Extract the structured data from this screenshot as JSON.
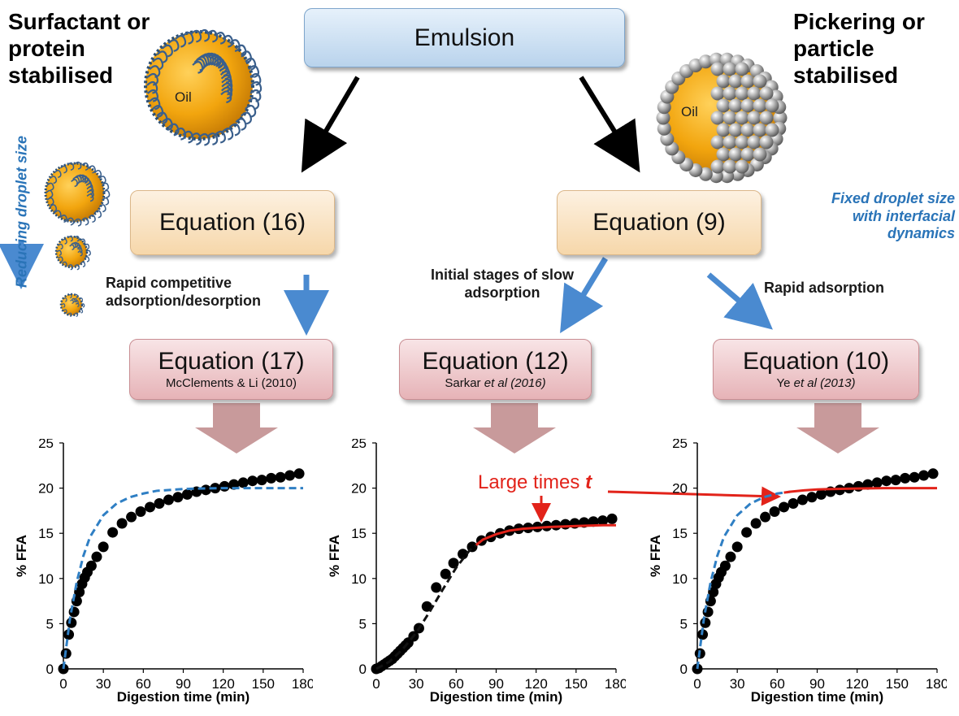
{
  "colors": {
    "fit_blue": "#2f7fc4",
    "fit_red": "#e2231a",
    "fit_black": "#111111",
    "oil": "#f2a50e",
    "arrow_blue": "#4a8ad0",
    "arrow_pink": "#c89a9b"
  },
  "emulsion_label": "Emulsion",
  "left_title": "Surfactant or protein stabilised",
  "right_title": "Pickering or particle stabilised",
  "oil_label": "Oil",
  "reducing_label": "Reducing droplet size",
  "fixed_label": "Fixed droplet size with interfacial dynamics",
  "eq16": "Equation (16)",
  "eq9": "Equation (9)",
  "note_rapid_comp": "Rapid competitive adsorption/desorption",
  "note_initial": "Initial stages of slow adsorption",
  "note_rapid_ads": "Rapid adsorption",
  "eq17": {
    "label": "Equation (17)",
    "ref": "McClements & Li (2010)"
  },
  "eq12": {
    "label": "Equation (12)",
    "ref_pre": "Sarkar ",
    "ref_it": "et al (2016)"
  },
  "eq10": {
    "label": "Equation (10)",
    "ref_pre": "Ye ",
    "ref_it": "et al (2013)"
  },
  "large_times_label": "Large times",
  "large_times_var": "t",
  "chart_data": [
    {
      "type": "scatter",
      "xlabel": "Digestion time (min)",
      "ylabel": "% FFA",
      "xlim": [
        0,
        180
      ],
      "ylim": [
        0,
        25
      ],
      "xticks": [
        0,
        30,
        60,
        90,
        120,
        150,
        180
      ],
      "yticks": [
        0,
        5,
        10,
        15,
        20,
        25
      ],
      "series": [
        {
          "kind": "points",
          "x": [
            0,
            2,
            4,
            6,
            8,
            10,
            12,
            14,
            16,
            18,
            21,
            25,
            30,
            37,
            44,
            51,
            58,
            65,
            72,
            79,
            86,
            93,
            100,
            107,
            114,
            121,
            128,
            135,
            142,
            149,
            156,
            163,
            170,
            177
          ],
          "y": [
            0,
            1.7,
            3.8,
            5.1,
            6.3,
            7.5,
            8.5,
            9.4,
            10.1,
            10.7,
            11.4,
            12.4,
            13.5,
            15.1,
            16.1,
            16.8,
            17.4,
            17.9,
            18.3,
            18.7,
            19.0,
            19.3,
            19.6,
            19.8,
            20.0,
            20.2,
            20.4,
            20.6,
            20.8,
            20.9,
            21.1,
            21.2,
            21.4,
            21.6
          ]
        },
        {
          "kind": "dashed-line",
          "color": "#2f7fc4",
          "x": [
            0,
            5,
            10,
            15,
            20,
            30,
            40,
            50,
            60,
            70,
            80,
            90,
            100,
            120,
            140,
            160,
            180
          ],
          "y": [
            0,
            5.6,
            9.6,
            12.5,
            14.6,
            17.0,
            18.3,
            19.0,
            19.4,
            19.7,
            19.8,
            19.9,
            19.95,
            20.0,
            20.0,
            20.0,
            20.0
          ]
        }
      ]
    },
    {
      "type": "scatter",
      "xlabel": "Digestion time (min)",
      "ylabel": "% FFA",
      "xlim": [
        0,
        180
      ],
      "ylim": [
        0,
        25
      ],
      "xticks": [
        0,
        30,
        60,
        90,
        120,
        150,
        180
      ],
      "yticks": [
        0,
        5,
        10,
        15,
        20,
        25
      ],
      "series": [
        {
          "kind": "points",
          "x": [
            0,
            2,
            4,
            6,
            8,
            10,
            12,
            14,
            16,
            18,
            20,
            22,
            24,
            28,
            32,
            38,
            45,
            52,
            58,
            65,
            72,
            79,
            86,
            93,
            100,
            107,
            114,
            121,
            128,
            135,
            142,
            149,
            156,
            163,
            170,
            177
          ],
          "y": [
            0,
            0.1,
            0.3,
            0.5,
            0.7,
            0.9,
            1.1,
            1.4,
            1.7,
            2.0,
            2.3,
            2.6,
            2.9,
            3.6,
            4.5,
            6.9,
            9.0,
            10.5,
            11.7,
            12.7,
            13.5,
            14.2,
            14.6,
            15.0,
            15.3,
            15.5,
            15.6,
            15.7,
            15.8,
            15.9,
            16.0,
            16.1,
            16.2,
            16.3,
            16.4,
            16.6
          ]
        },
        {
          "kind": "dashed-line",
          "color": "#111111",
          "x": [
            0,
            10,
            20,
            30,
            40,
            50,
            60,
            70,
            80
          ],
          "y": [
            0,
            0.8,
            2.2,
            4.0,
            6.3,
            8.8,
            11.2,
            13.1,
            14.3
          ]
        },
        {
          "kind": "line",
          "color": "#e2231a",
          "x": [
            75,
            80,
            90,
            100,
            110,
            120,
            130,
            140,
            150,
            160,
            170,
            180
          ],
          "y": [
            13.7,
            14.3,
            14.9,
            15.3,
            15.5,
            15.6,
            15.7,
            15.75,
            15.8,
            15.85,
            15.9,
            15.9
          ]
        }
      ]
    },
    {
      "type": "scatter",
      "xlabel": "Digestion time (min)",
      "ylabel": "% FFA",
      "xlim": [
        0,
        180
      ],
      "ylim": [
        0,
        25
      ],
      "xticks": [
        0,
        30,
        60,
        90,
        120,
        150,
        180
      ],
      "yticks": [
        0,
        5,
        10,
        15,
        20,
        25
      ],
      "series": [
        {
          "kind": "points",
          "x": [
            0,
            2,
            4,
            6,
            8,
            10,
            12,
            14,
            16,
            18,
            21,
            25,
            30,
            37,
            44,
            51,
            58,
            65,
            72,
            79,
            86,
            93,
            100,
            107,
            114,
            121,
            128,
            135,
            142,
            149,
            156,
            163,
            170,
            177
          ],
          "y": [
            0,
            1.7,
            3.8,
            5.1,
            6.3,
            7.5,
            8.5,
            9.4,
            10.1,
            10.7,
            11.4,
            12.4,
            13.5,
            15.1,
            16.1,
            16.8,
            17.4,
            17.9,
            18.3,
            18.7,
            19.0,
            19.3,
            19.6,
            19.8,
            20.0,
            20.2,
            20.4,
            20.6,
            20.8,
            20.9,
            21.1,
            21.2,
            21.4,
            21.6
          ]
        },
        {
          "kind": "dashed-line",
          "color": "#2f7fc4",
          "x": [
            0,
            5,
            10,
            15,
            20,
            30,
            40,
            50,
            60,
            70
          ],
          "y": [
            0,
            5.6,
            9.6,
            12.5,
            14.6,
            17.0,
            18.3,
            19.0,
            19.4,
            19.6
          ]
        },
        {
          "kind": "line",
          "color": "#e2231a",
          "x": [
            65,
            70,
            80,
            90,
            100,
            120,
            140,
            160,
            180
          ],
          "y": [
            19.5,
            19.6,
            19.75,
            19.85,
            19.9,
            19.95,
            20.0,
            20.0,
            20.0
          ]
        }
      ]
    }
  ]
}
